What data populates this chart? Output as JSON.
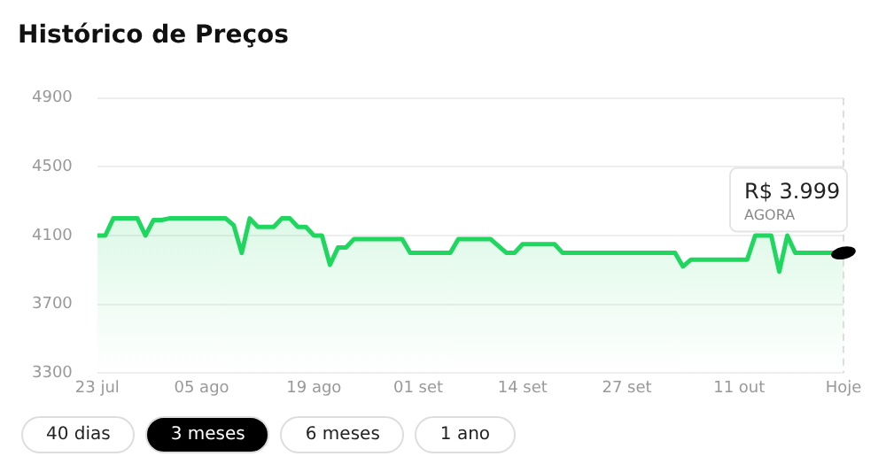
{
  "chart_data": {
    "type": "area",
    "title": "Histórico de Preços",
    "x": [
      "--07-23",
      "--07-24",
      "--07-25",
      "--07-28",
      "--07-29",
      "--07-30",
      "--07-31",
      "--08-01",
      "--08-08",
      "--08-09",
      "--08-10",
      "--08-11",
      "--08-12",
      "--08-14",
      "--08-15",
      "--08-16",
      "--08-17",
      "--08-18",
      "--08-19",
      "--08-20",
      "--08-21",
      "--08-22",
      "--08-23",
      "--08-24",
      "--08-30",
      "--08-31",
      "--09-05",
      "--09-06",
      "--09-10",
      "--09-12",
      "--09-13",
      "--09-14",
      "--09-18",
      "--09-19",
      "--10-03",
      "--10-04",
      "--10-05",
      "--10-12",
      "--10-13",
      "--10-15",
      "--10-16",
      "--10-17",
      "--10-18",
      "--10-24"
    ],
    "series": [
      {
        "color": "#1fd65f",
        "values": [
          4100,
          4100,
          4200,
          4200,
          4100,
          4190,
          4190,
          4200,
          4200,
          4160,
          3999,
          4200,
          4150,
          4150,
          4200,
          4200,
          4150,
          4150,
          4100,
          4100,
          3930,
          4030,
          4030,
          4080,
          4080,
          3999,
          3999,
          4080,
          4080,
          3999,
          3999,
          4050,
          4050,
          3999,
          3999,
          3920,
          3960,
          3960,
          4100,
          4100,
          3890,
          4100,
          3999,
          3999
        ]
      }
    ],
    "ylim": [
      3300,
      4900
    ],
    "yticks": [
      3300,
      3700,
      4100,
      4500,
      4900
    ],
    "xlim": [
      "--07-23",
      "--10-24"
    ],
    "xticks": [
      {
        "value": "--07-23",
        "label": "23 jul"
      },
      {
        "value": "--08-05",
        "label": "05 ago"
      },
      {
        "value": "--08-19",
        "label": "19 ago"
      },
      {
        "value": "--09-01",
        "label": "01 set"
      },
      {
        "value": "--09-14",
        "label": "14 set"
      },
      {
        "value": "--09-27",
        "label": "27 set"
      },
      {
        "value": "--10-11",
        "label": "11 out"
      },
      {
        "value": "--10-24",
        "label": "Hoje"
      }
    ],
    "grid": "y",
    "legend": false,
    "marker": "none",
    "line_style": "solid",
    "ref_lines": [
      {
        "axis": "x",
        "value": "--10-24",
        "label": null,
        "color": "#dddddd",
        "line_style": "dashed"
      }
    ],
    "annotations": [
      {
        "text": "R$ 3.999",
        "x": "--10-24",
        "y": 3999
      },
      "AGORA",
      "40 dias",
      "3 meses",
      "6 meses",
      "1 ano"
    ]
  }
}
